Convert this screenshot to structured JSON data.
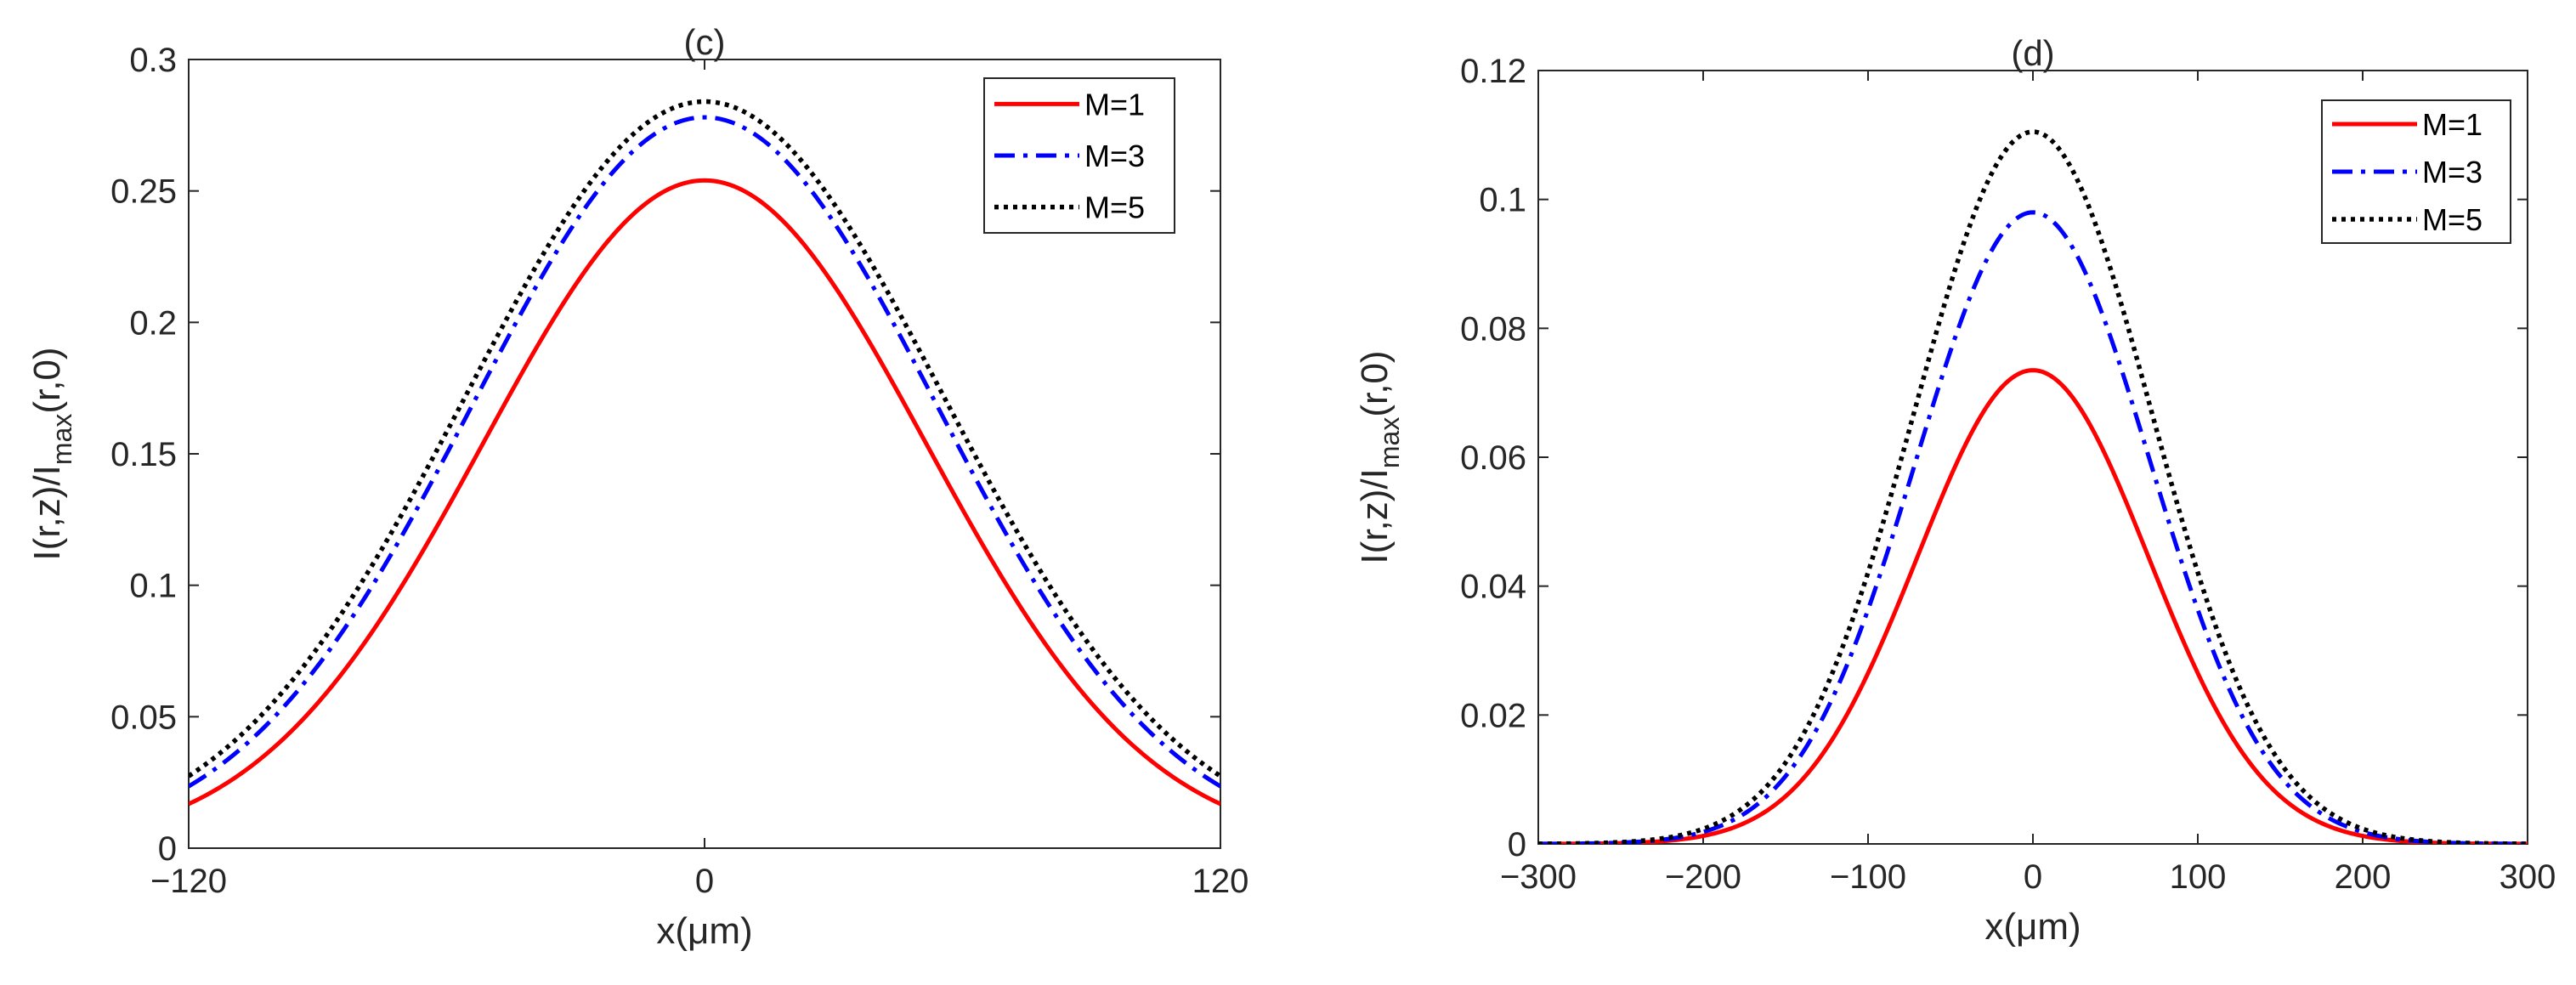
{
  "chart_data": [
    {
      "panel": "c",
      "type": "line",
      "title": "(c)",
      "xlabel": "x(μm)",
      "ylabel": {
        "main": "I(r,z)/I",
        "sub": "max",
        "tail": "(r,0)"
      },
      "xlim": [
        -120,
        120
      ],
      "ylim": [
        0,
        0.3
      ],
      "xticks": [
        -120,
        0,
        120
      ],
      "xtick_labels": [
        "−120",
        "0",
        "120"
      ],
      "yticks": [
        0,
        0.05,
        0.1,
        0.15,
        0.2,
        0.25,
        0.3
      ],
      "ytick_labels": [
        "0",
        "0.05",
        "0.1",
        "0.15",
        "0.2",
        "0.25",
        "0.3"
      ],
      "legend_position": "top-right",
      "series": [
        {
          "name": "M=1",
          "color": "#ff0000",
          "style": "solid",
          "peak": 0.254,
          "sigma": 51.5
        },
        {
          "name": "M=3",
          "color": "#0000ff",
          "style": "dashdot",
          "peak": 0.278,
          "sigma": 54
        },
        {
          "name": "M=5",
          "color": "#000000",
          "style": "dotted",
          "peak": 0.284,
          "sigma": 55.5
        }
      ]
    },
    {
      "panel": "d",
      "type": "line",
      "title": "(d)",
      "xlabel": "x(μm)",
      "ylabel": {
        "main": "I(r,z)/I",
        "sub": "max",
        "tail": "(r,0)"
      },
      "xlim": [
        -300,
        300
      ],
      "ylim": [
        0,
        0.12
      ],
      "xticks": [
        -300,
        -200,
        -100,
        0,
        100,
        200,
        300
      ],
      "xtick_labels": [
        "−300",
        "−200",
        "−100",
        "0",
        "100",
        "200",
        "300"
      ],
      "yticks": [
        0,
        0.02,
        0.04,
        0.06,
        0.08,
        0.1,
        0.12
      ],
      "ytick_labels": [
        "0",
        "0.02",
        "0.04",
        "0.06",
        "0.08",
        "0.1",
        "0.12"
      ],
      "legend_position": "top-right",
      "series": [
        {
          "name": "M=1",
          "color": "#ff0000",
          "style": "solid",
          "peak": 0.0735,
          "sigma": 70
        },
        {
          "name": "M=3",
          "color": "#0000ff",
          "style": "dashdot",
          "peak": 0.098,
          "sigma": 71
        },
        {
          "name": "M=5",
          "color": "#000000",
          "style": "dotted",
          "peak": 0.1105,
          "sigma": 72
        }
      ]
    }
  ]
}
